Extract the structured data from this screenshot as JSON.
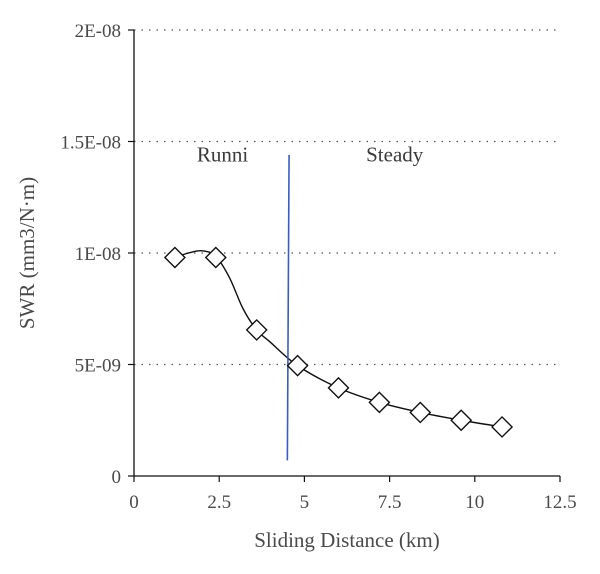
{
  "chart_data": {
    "type": "scatter",
    "xlabel": "Sliding Distance (km)",
    "ylabel": "SWR (mm3/N·m)",
    "xlim": [
      0,
      12.5
    ],
    "ylim": [
      0,
      2e-08
    ],
    "xticks": [
      0,
      2.5,
      5,
      7.5,
      10,
      12.5
    ],
    "xtick_labels": [
      "0",
      "2.5",
      "5",
      "7.5",
      "10",
      "12.5"
    ],
    "yticks": [
      0,
      5e-09,
      1e-08,
      1.5e-08,
      2e-08
    ],
    "ytick_labels": [
      "0",
      "5E-09",
      "1E-08",
      "1.5E-08",
      "2E-08"
    ],
    "grid": "horizontal-dotted",
    "series": [
      {
        "marker": "diamond-open",
        "x": [
          1.2,
          2.4,
          3.6,
          4.8,
          6.0,
          7.2,
          8.4,
          9.6,
          10.8
        ],
        "y": [
          9.8e-09,
          9.8e-09,
          6.55e-09,
          4.95e-09,
          3.95e-09,
          3.3e-09,
          2.85e-09,
          2.5e-09,
          2.2e-09
        ]
      }
    ],
    "fit_curve": {
      "style": "smooth-black",
      "x": [
        1.2,
        1.6,
        2.0,
        2.4,
        2.8,
        3.2,
        3.6,
        4.0,
        4.8,
        6.0,
        7.2,
        8.4,
        9.6,
        10.8
      ],
      "y": [
        9.8e-09,
        1e-08,
        1.01e-08,
        9.85e-09,
        8.9e-09,
        7.5e-09,
        6.55e-09,
        6e-09,
        4.95e-09,
        3.95e-09,
        3.3e-09,
        2.85e-09,
        2.5e-09,
        2.2e-09
      ]
    },
    "divider": {
      "color": "#3a5bc7",
      "x_top": 4.55,
      "x_bottom": 4.5,
      "y_top": 1.44e-08,
      "y_bottom": 7e-10
    },
    "annotations": [
      {
        "text": "Runni",
        "x": 2.6,
        "y": 1.41e-08
      },
      {
        "text": "Steady",
        "x": 7.65,
        "y": 1.41e-08
      }
    ]
  }
}
